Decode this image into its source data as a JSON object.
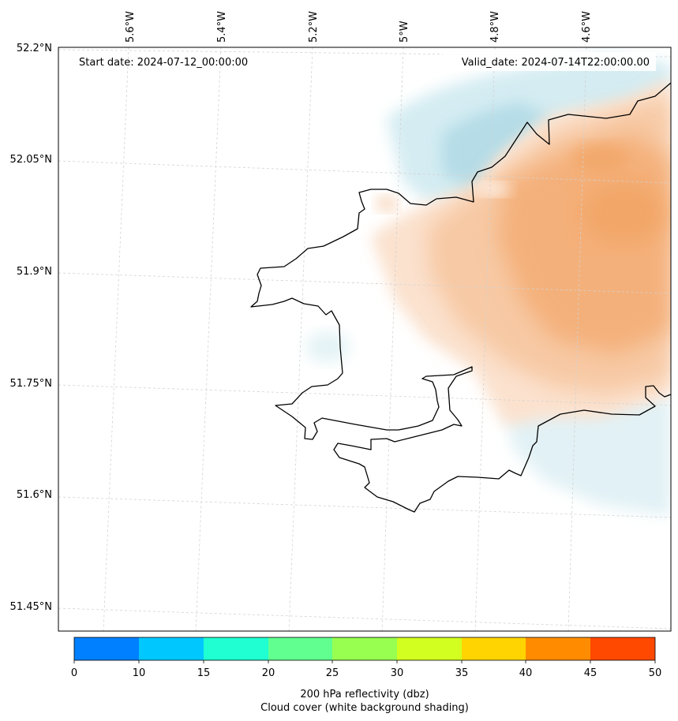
{
  "map": {
    "start_date": "Start date: 2024-07-12_00:00:00",
    "valid_date": "Valid_date: 2024-07-14T22:00:00.00",
    "lat_labels": [
      "52.2°N",
      "52.05°N",
      "51.9°N",
      "51.75°N",
      "51.6°N",
      "51.45°N"
    ],
    "lon_labels": [
      "5.6°W",
      "5.4°W",
      "5.2°W",
      "5°W",
      "4.8°W",
      "4.6°W"
    ]
  },
  "colorbar": {
    "ticks": [
      "0",
      "10",
      "15",
      "20",
      "25",
      "30",
      "35",
      "40",
      "45",
      "50"
    ],
    "colors": [
      "#0080ff",
      "#00c8ff",
      "#20ffd2",
      "#60ff90",
      "#98ff50",
      "#d2ff20",
      "#ffd400",
      "#ff8c00",
      "#ff4800"
    ],
    "label_line1": "200 hPa reflectivity (dbz)",
    "label_line2": "Cloud cover (white background shading)"
  },
  "colors": {
    "orange_field": "#f5a35f",
    "blue_cloud": "#9fd3e0",
    "coastline": "#000000",
    "grid": "#d0d0d0"
  }
}
